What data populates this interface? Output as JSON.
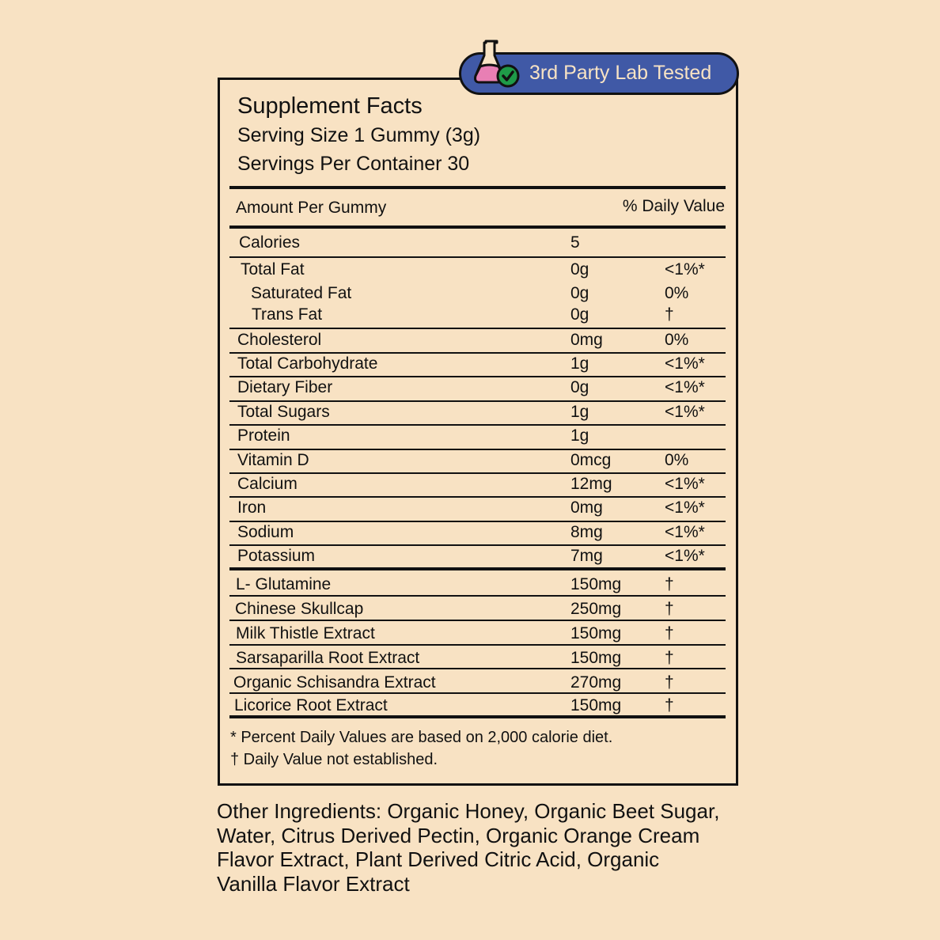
{
  "badge": {
    "label": "3rd Party Lab Tested",
    "icon": "flask-check-icon",
    "color": "#4059a6"
  },
  "header": {
    "title": "Supplement Facts",
    "serving_size": "Serving Size 1 Gummy (3g)",
    "servings_per_container": "Servings Per Container 30"
  },
  "columns": {
    "amount": "Amount Per Gummy",
    "daily_value": "% Daily Value"
  },
  "rows": [
    {
      "name": "Calories",
      "amount": "5",
      "dv": ""
    },
    {
      "name": "Total Fat",
      "amount": "0g",
      "dv": "<1%*"
    },
    {
      "name": "Saturated Fat",
      "amount": "0g",
      "dv": "0%"
    },
    {
      "name": "Trans Fat",
      "amount": "0g",
      "dv": "†"
    },
    {
      "name": "Cholesterol",
      "amount": "0mg",
      "dv": "0%"
    },
    {
      "name": "Total Carbohydrate",
      "amount": "1g",
      "dv": "<1%*"
    },
    {
      "name": "Dietary Fiber",
      "amount": "0g",
      "dv": "<1%*"
    },
    {
      "name": "Total Sugars",
      "amount": "1g",
      "dv": "<1%*"
    },
    {
      "name": "Protein",
      "amount": "1g",
      "dv": ""
    },
    {
      "name": "Vitamin D",
      "amount": "0mcg",
      "dv": "0%"
    },
    {
      "name": "Calcium",
      "amount": "12mg",
      "dv": "<1%*"
    },
    {
      "name": "Iron",
      "amount": "0mg",
      "dv": "<1%*"
    },
    {
      "name": "Sodium",
      "amount": "8mg",
      "dv": "<1%*"
    },
    {
      "name": "Potassium",
      "amount": "7mg",
      "dv": "<1%*"
    },
    {
      "name": "L- Glutamine",
      "amount": "150mg",
      "dv": "†"
    },
    {
      "name": "Chinese Skullcap",
      "amount": "250mg",
      "dv": "†"
    },
    {
      "name": "Milk Thistle Extract",
      "amount": "150mg",
      "dv": "†"
    },
    {
      "name": "Sarsaparilla Root Extract",
      "amount": "150mg",
      "dv": "†"
    },
    {
      "name": "Organic Schisandra Extract",
      "amount": "270mg",
      "dv": "†"
    },
    {
      "name": "Licorice Root Extract",
      "amount": "150mg",
      "dv": "†"
    }
  ],
  "footnotes": [
    "* Percent Daily Values are based on 2,000 calorie diet.",
    "† Daily Value not established."
  ],
  "other_ingredients": "Other Ingredients: Organic Honey, Organic Beet Sugar, Water, Citrus Derived Pectin, Organic Orange Cream Flavor Extract, Plant Derived Citric Acid, Organic Vanilla Flavor Extract"
}
